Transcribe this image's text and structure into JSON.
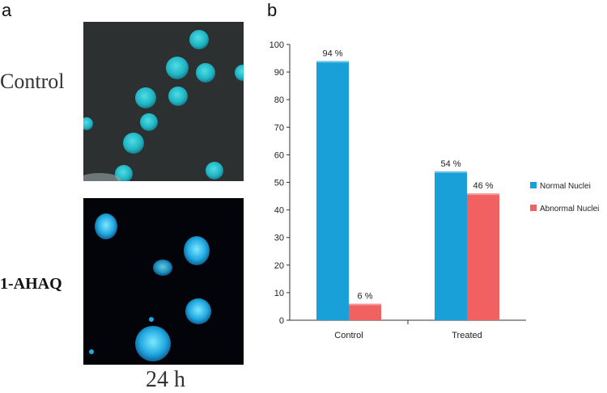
{
  "panels": {
    "a": {
      "letter": "a",
      "row_labels": [
        "Control",
        "1-AHAQ"
      ],
      "time_label": "24 h"
    },
    "b": {
      "letter": "b"
    }
  },
  "colors": {
    "normal": "#1aa0d8",
    "abnormal": "#f26161",
    "control_bg": "#2c3030",
    "treated_bg": "#02040a",
    "nucleus_control": "#21b8c8",
    "nucleus_treated": "#1fb0e0"
  },
  "chart_data": {
    "type": "bar",
    "title": "",
    "xlabel": "",
    "ylabel": "",
    "categories": [
      "Control",
      "Treated"
    ],
    "series": [
      {
        "name": "Normal Nuclei",
        "values": [
          94,
          54
        ],
        "labels": [
          "94 %",
          "54 %"
        ]
      },
      {
        "name": "Abnormal Nuclei",
        "values": [
          6,
          46
        ],
        "labels": [
          "6 %",
          "46 %"
        ]
      }
    ],
    "ylim": [
      0,
      100
    ],
    "yticks": [
      0,
      10,
      20,
      30,
      40,
      50,
      60,
      70,
      80,
      90,
      100
    ],
    "grid": false,
    "legend": "right"
  }
}
